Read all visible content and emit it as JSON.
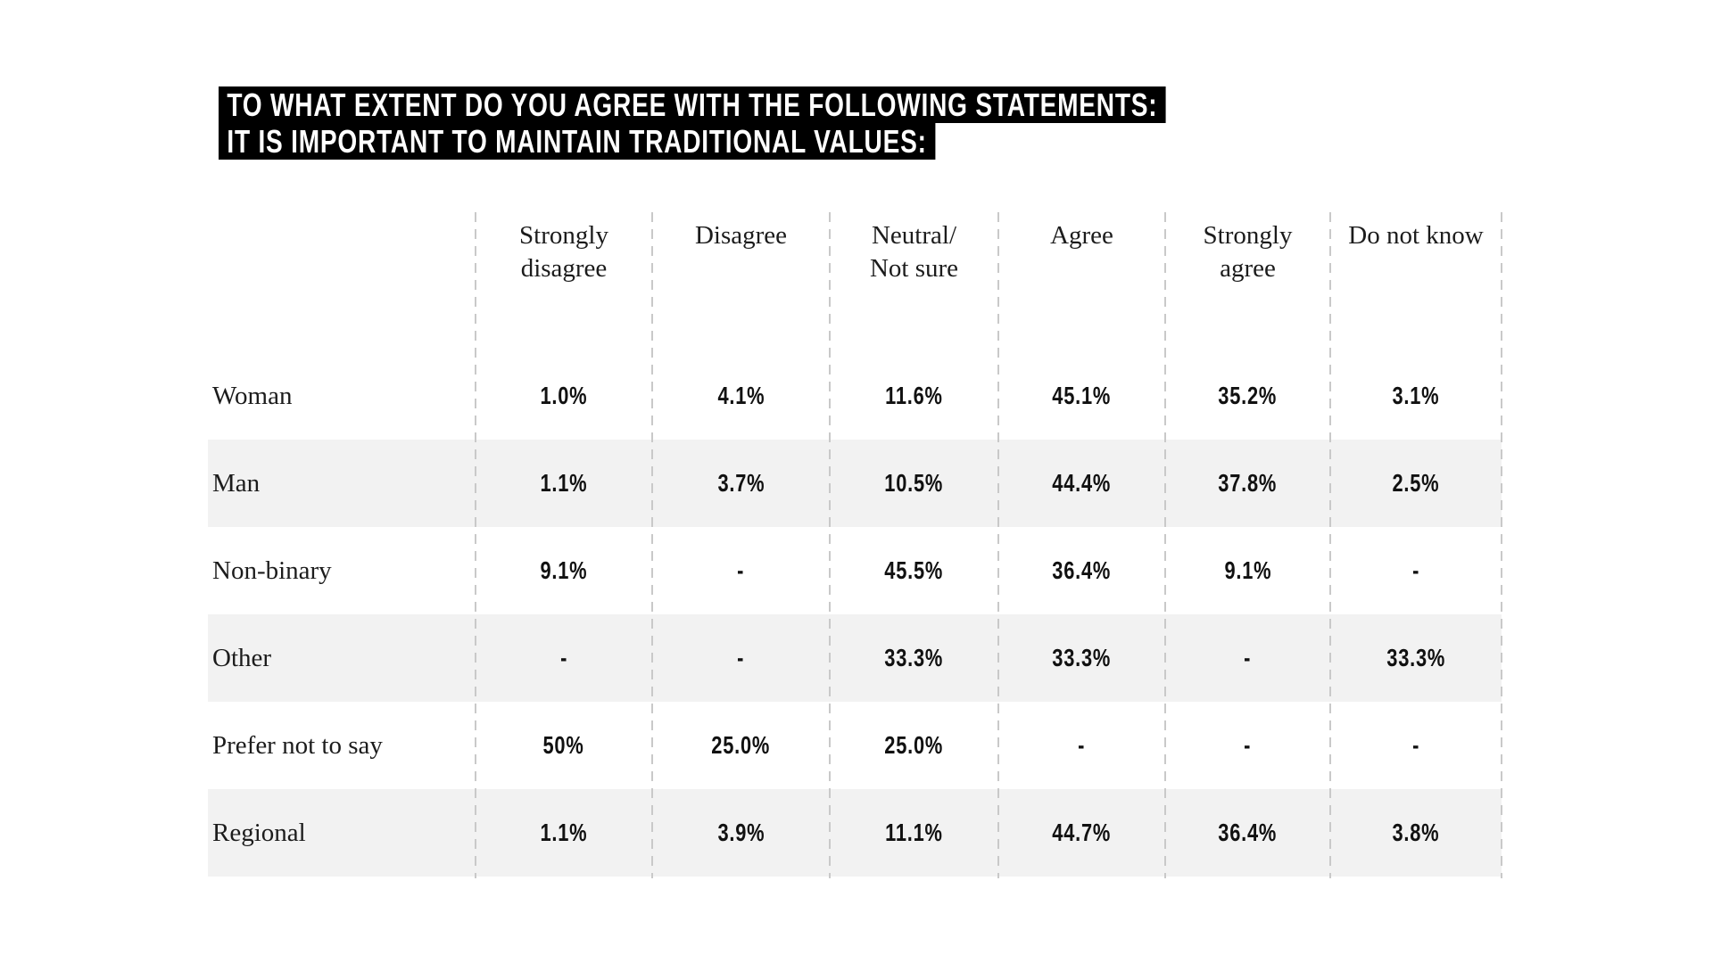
{
  "title": {
    "line1": "TO WHAT EXTENT DO YOU AGREE WITH THE FOLLOWING STATEMENTS:",
    "line2": "IT IS IMPORTANT TO MAINTAIN TRADITIONAL VALUES:"
  },
  "header": {
    "cols": [
      {
        "line1": "Strongly",
        "line2": "disagree"
      },
      {
        "line1": "Disagree",
        "line2": ""
      },
      {
        "line1": "Neutral/",
        "line2": "Not sure"
      },
      {
        "line1": "Agree",
        "line2": ""
      },
      {
        "line1": "Strongly",
        "line2": "agree"
      },
      {
        "line1": "Do not know",
        "line2": ""
      }
    ]
  },
  "chart_data": {
    "type": "table",
    "title": "TO WHAT EXTENT DO YOU AGREE WITH THE FOLLOWING STATEMENTS: IT IS IMPORTANT TO MAINTAIN TRADITIONAL VALUES:",
    "columns": [
      "Strongly disagree",
      "Disagree",
      "Neutral/Not sure",
      "Agree",
      "Strongly agree",
      "Do not know"
    ],
    "rows": [
      {
        "label": "Woman",
        "values": [
          "1.0%",
          "4.1%",
          "11.6%",
          "45.1%",
          "35.2%",
          "3.1%"
        ]
      },
      {
        "label": "Man",
        "values": [
          "1.1%",
          "3.7%",
          "10.5%",
          "44.4%",
          "37.8%",
          "2.5%"
        ]
      },
      {
        "label": "Non-binary",
        "values": [
          "9.1%",
          "-",
          "45.5%",
          "36.4%",
          "9.1%",
          "-"
        ]
      },
      {
        "label": "Other",
        "values": [
          "-",
          "-",
          "33.3%",
          "33.3%",
          "-",
          "33.3%"
        ]
      },
      {
        "label": "Prefer not to say",
        "values": [
          "50%",
          "25.0%",
          "25.0%",
          "-",
          "-",
          "-"
        ]
      },
      {
        "label": "Regional",
        "values": [
          "1.1%",
          "3.9%",
          "11.1%",
          "44.7%",
          "36.4%",
          "3.8%"
        ]
      }
    ],
    "colors": {
      "title_bg": "#000000",
      "title_text": "#ffffff",
      "row_stripe": "#f2f2f2",
      "text": "#1c1c1c",
      "divider": "#c9c9c9"
    },
    "layout": {
      "legend": "none",
      "grid": "dashed-vertical-column-dividers",
      "stripe_rows": [
        "Man",
        "Other",
        "Regional"
      ]
    }
  }
}
